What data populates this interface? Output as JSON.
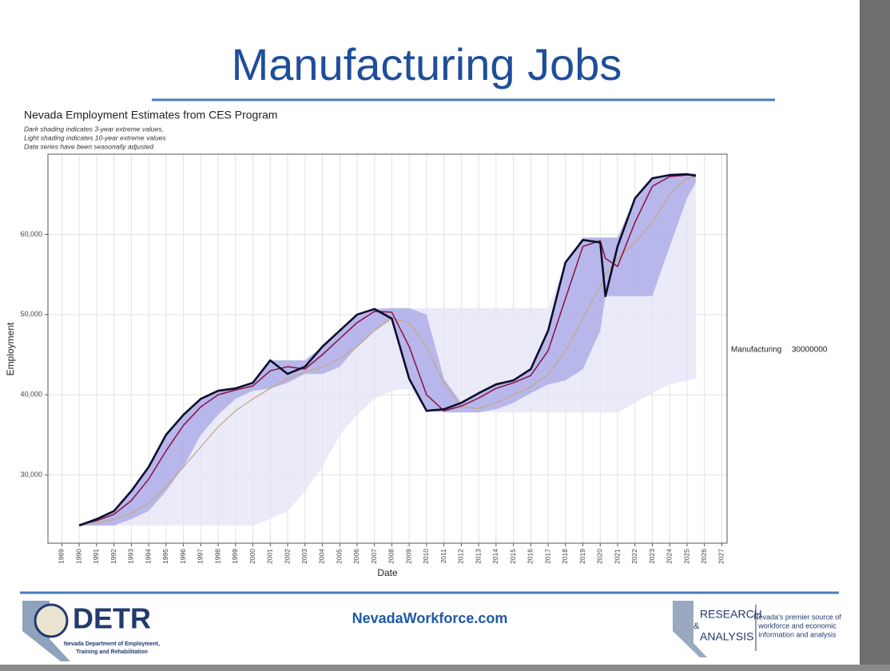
{
  "slide": {
    "title": "Manufacturing Jobs"
  },
  "chart_data": {
    "type": "line",
    "title": "Nevada Employment Estimates from CES Program",
    "subtitle": [
      "Dark shading indicates 3-year extreme values,",
      "Light shading indicates 10-year extreme values",
      "Data series have been seasonally adjusted"
    ],
    "xlabel": "Date",
    "ylabel": "Employment",
    "legend_label": "Manufacturing",
    "legend_value": "30000000",
    "grid": true,
    "xlim": [
      1988.2,
      2027.3
    ],
    "xticks": [
      1989,
      1990,
      1991,
      1992,
      1993,
      1994,
      1995,
      1996,
      1997,
      1998,
      1999,
      2000,
      2001,
      2002,
      2003,
      2004,
      2005,
      2006,
      2007,
      2008,
      2009,
      2010,
      2011,
      2012,
      2013,
      2014,
      2015,
      2016,
      2017,
      2018,
      2019,
      2020,
      2021,
      2022,
      2023,
      2024,
      2025,
      2026,
      2027
    ],
    "ylim": [
      21500,
      70000
    ],
    "yticks": [
      {
        "value": 30000,
        "label": "30,000"
      },
      {
        "value": 40000,
        "label": "40,000"
      },
      {
        "value": 50000,
        "label": "50,000"
      },
      {
        "value": 60000,
        "label": "60,000"
      }
    ],
    "x": [
      1990,
      1991,
      1992,
      1993,
      1994,
      1995,
      1996,
      1997,
      1998,
      1999,
      2000,
      2001,
      2002,
      2003,
      2004,
      2005,
      2006,
      2007,
      2008,
      2009,
      2010,
      2011,
      2012,
      2013,
      2014,
      2015,
      2016,
      2017,
      2018,
      2019,
      2020,
      2020.3,
      2021,
      2022,
      2023,
      2024,
      2025,
      2025.5
    ],
    "bands": [
      {
        "color": "#e3e3f7",
        "high": [
          23700,
          24500,
          25500,
          28000,
          31000,
          35000,
          37500,
          39500,
          40500,
          40800,
          41500,
          44300,
          44300,
          44300,
          46000,
          48000,
          50000,
          50700,
          50800,
          50800,
          50800,
          50800,
          50800,
          50800,
          50800,
          50800,
          50800,
          50800,
          56500,
          59600,
          59600,
          59600,
          59600,
          64500,
          67000,
          67400,
          67600,
          67600
        ],
        "low": [
          23700,
          23700,
          23700,
          23700,
          23700,
          23700,
          23700,
          23700,
          23700,
          23700,
          23700,
          24500,
          25500,
          28000,
          31000,
          35000,
          37500,
          39500,
          40500,
          40800,
          38000,
          37800,
          37800,
          37800,
          37800,
          37800,
          37800,
          37800,
          37800,
          37800,
          37800,
          37800,
          37800,
          39000,
          40200,
          41300,
          41800,
          42000
        ]
      },
      {
        "color": "#a6a6e6",
        "high": [
          23700,
          24500,
          25500,
          28000,
          31000,
          35000,
          37500,
          39500,
          40500,
          40800,
          41500,
          44300,
          44300,
          44300,
          46000,
          48000,
          50000,
          50700,
          50800,
          50800,
          50000,
          42000,
          39000,
          40200,
          41300,
          41800,
          43200,
          48000,
          56500,
          59600,
          59600,
          59600,
          59600,
          64500,
          67000,
          67400,
          67600,
          67600
        ],
        "low": [
          23700,
          23700,
          23700,
          24500,
          25500,
          28000,
          31000,
          35000,
          37500,
          39500,
          40500,
          40800,
          41500,
          42600,
          42600,
          43500,
          46000,
          48000,
          49500,
          42000,
          38000,
          37800,
          37800,
          37800,
          38200,
          39000,
          40200,
          41300,
          41800,
          43200,
          48000,
          52300,
          52300,
          52300,
          52300,
          58500,
          64500,
          66500
        ]
      }
    ],
    "series": [
      {
        "color": "#c9a57e",
        "width": 1.2,
        "values": [
          23800,
          24000,
          24500,
          25200,
          26500,
          28500,
          31000,
          33500,
          36000,
          38000,
          39500,
          40800,
          42000,
          42800,
          43500,
          44500,
          46000,
          48000,
          49500,
          49000,
          46000,
          41500,
          38500,
          38300,
          39000,
          40000,
          41000,
          42500,
          45500,
          49500,
          53500,
          55000,
          57000,
          59000,
          61500,
          65000,
          67000,
          67200
        ]
      },
      {
        "color": "#8b1a4a",
        "width": 1.6,
        "values": [
          23800,
          24300,
          25100,
          26800,
          29500,
          33000,
          36200,
          38500,
          40000,
          40600,
          41100,
          43000,
          43500,
          43200,
          45000,
          47000,
          49000,
          50400,
          50300,
          46000,
          40000,
          38000,
          38600,
          39600,
          40800,
          41500,
          42400,
          45500,
          52000,
          58500,
          59200,
          57000,
          56000,
          61500,
          66000,
          67200,
          67400,
          67400
        ]
      },
      {
        "color": "#0d0d2b",
        "width": 2.6,
        "values": [
          23700,
          24500,
          25500,
          28000,
          31000,
          35000,
          37500,
          39500,
          40500,
          40800,
          41500,
          44300,
          42600,
          43500,
          46000,
          48000,
          50000,
          50700,
          49500,
          42000,
          38000,
          38200,
          39000,
          40200,
          41300,
          41800,
          43200,
          48000,
          56500,
          59300,
          59000,
          52300,
          58500,
          64500,
          67000,
          67400,
          67500,
          67300
        ]
      }
    ]
  },
  "footer": {
    "logo": "DETR",
    "department": [
      "Nevada Department of Employment,",
      "Training and Rehabilitation"
    ],
    "website": "NevadaWorkforce.com",
    "research_logo": {
      "line1": "RESEARCH",
      "amp": "&",
      "line2": "ANALYSIS"
    },
    "tagline": [
      "Nevada's premier source of",
      "workforce and economic",
      "information and analysis"
    ]
  }
}
